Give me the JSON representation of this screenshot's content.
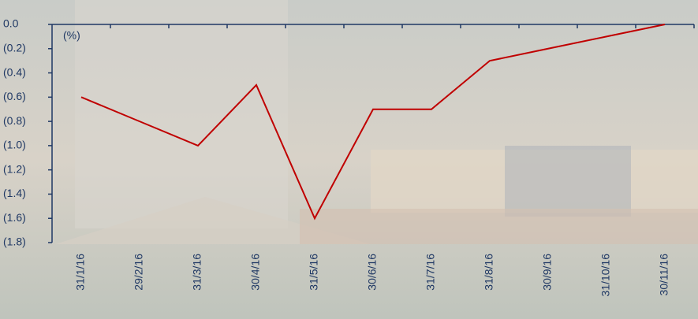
{
  "chart_data": {
    "type": "line",
    "unit_label": "(%)",
    "categories": [
      "31/1/16",
      "29/2/16",
      "31/3/16",
      "30/4/16",
      "31/5/16",
      "30/6/16",
      "31/7/16",
      "31/8/16",
      "30/9/16",
      "31/10/16",
      "30/11/16"
    ],
    "series": [
      {
        "color": "#c00000",
        "values": [
          -0.6,
          -0.8,
          -1.0,
          -0.5,
          -1.6,
          -0.7,
          -0.7,
          -0.3,
          -0.2,
          -0.1,
          0.0
        ]
      }
    ],
    "ylim": [
      -1.8,
      0
    ],
    "yticks": [
      {
        "value": 0,
        "label": "0.0"
      },
      {
        "value": -0.2,
        "label": "(0.2)"
      },
      {
        "value": -0.4,
        "label": "(0.4)"
      },
      {
        "value": -0.6,
        "label": "(0.6)"
      },
      {
        "value": -0.8,
        "label": "(0.8)"
      },
      {
        "value": -1.0,
        "label": "(1.0)"
      },
      {
        "value": -1.2,
        "label": "(1.2)"
      },
      {
        "value": -1.4,
        "label": "(1.4)"
      },
      {
        "value": -1.6,
        "label": "(1.6)"
      },
      {
        "value": -1.8,
        "label": "(1.8)"
      }
    ],
    "axis_color": "#1f3864"
  }
}
